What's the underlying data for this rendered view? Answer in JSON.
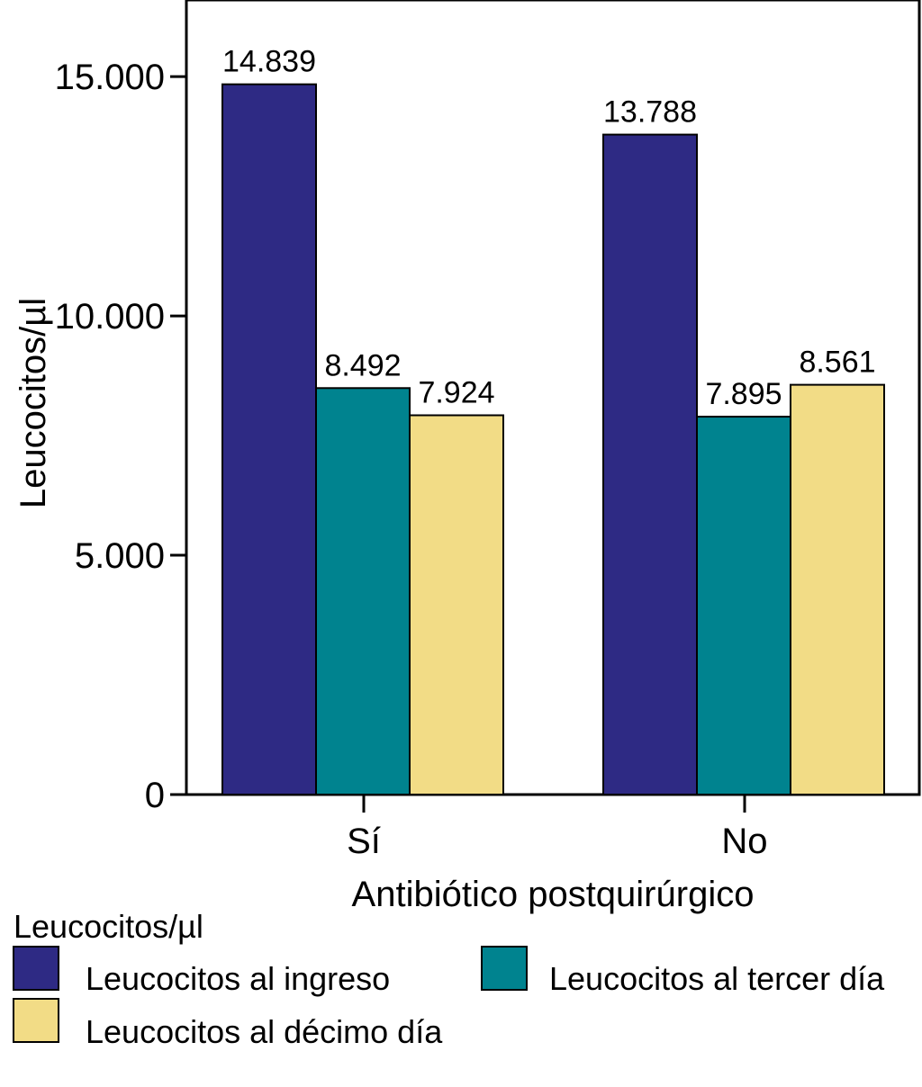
{
  "chart_data": {
    "type": "bar",
    "categories": [
      "Sí",
      "No"
    ],
    "series": [
      {
        "name": "Leucocitos al ingreso",
        "values": [
          14839,
          13788
        ],
        "labels": [
          "14.839",
          "13.788"
        ],
        "color": "#2e2a84"
      },
      {
        "name": "Leucocitos al tercer día",
        "values": [
          8492,
          7895
        ],
        "labels": [
          "8.492",
          "7.895"
        ],
        "color": "#00838f"
      },
      {
        "name": "Leucocitos al décimo día",
        "values": [
          7924,
          8561
        ],
        "labels": [
          "7.924",
          "8.561"
        ],
        "color": "#f2dc86"
      }
    ],
    "xlabel": "Antibiótico postquirúrgico",
    "ylabel": "Leucocitos/µl",
    "ylim": [
      0,
      16600
    ],
    "yticks": [
      0,
      5000,
      10000,
      15000
    ],
    "ytick_labels": [
      "0",
      "5.000",
      "10.000",
      "15.000"
    ],
    "legend_title": "Leucocitos/µl",
    "legend_position": "bottom"
  }
}
